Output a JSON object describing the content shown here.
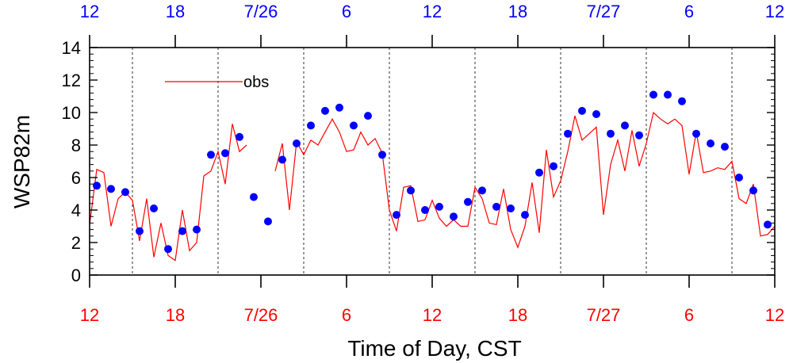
{
  "colors": {
    "obs_line": "#ff0000",
    "dots": "#0000ff",
    "bottom_ticks": "#ff0000",
    "top_ticks": "#0000ff",
    "axis": "#000000",
    "grid": "#000000"
  },
  "chart_data": {
    "type": "line",
    "title": "",
    "xlabel": "Time of Day, CST",
    "ylabel": "WSP82m",
    "xlim": [
      0,
      48
    ],
    "ylim": [
      0,
      14
    ],
    "y_ticks": [
      0,
      2,
      4,
      6,
      8,
      10,
      12,
      14
    ],
    "y_minor_step": 0.4,
    "x_ticks": [
      {
        "x": 0,
        "label": "12"
      },
      {
        "x": 6,
        "label": "18"
      },
      {
        "x": 12,
        "label": "7/26"
      },
      {
        "x": 18,
        "label": "6"
      },
      {
        "x": 24,
        "label": "12"
      },
      {
        "x": 30,
        "label": "18"
      },
      {
        "x": 36,
        "label": "7/27"
      },
      {
        "x": 42,
        "label": "6"
      },
      {
        "x": 48,
        "label": "12"
      }
    ],
    "top_x_ticks": [
      {
        "x": 0,
        "label": "12"
      },
      {
        "x": 6,
        "label": "18"
      },
      {
        "x": 12,
        "label": "7/26"
      },
      {
        "x": 18,
        "label": "6"
      },
      {
        "x": 24,
        "label": "12"
      },
      {
        "x": 30,
        "label": "18"
      },
      {
        "x": 36,
        "label": "7/27"
      },
      {
        "x": 42,
        "label": "6"
      },
      {
        "x": 48,
        "label": "12"
      }
    ],
    "gridlines_x": [
      3,
      9,
      15,
      21,
      27,
      33,
      39,
      45
    ],
    "legend": {
      "label": "obs",
      "position": "top-left"
    },
    "series": [
      {
        "name": "obs",
        "type": "line",
        "segments": [
          [
            [
              0,
              3.1
            ],
            [
              0.5,
              6.5
            ],
            [
              1,
              6.3
            ],
            [
              1.5,
              3.0
            ],
            [
              2,
              4.7
            ],
            [
              2.5,
              5.1
            ],
            [
              3,
              4.6
            ],
            [
              3.5,
              2.1
            ],
            [
              4,
              4.7
            ],
            [
              4.5,
              1.1
            ],
            [
              5,
              3.2
            ],
            [
              5.5,
              1.2
            ],
            [
              6,
              0.9
            ],
            [
              6.5,
              4.0
            ],
            [
              7,
              1.5
            ],
            [
              7.5,
              2.0
            ],
            [
              8,
              6.1
            ],
            [
              8.5,
              6.4
            ],
            [
              9,
              7.6
            ],
            [
              9.5,
              5.6
            ],
            [
              10,
              9.3
            ],
            [
              10.5,
              7.6
            ],
            [
              11,
              8.0
            ]
          ],
          [
            [
              13,
              6.4
            ],
            [
              13.5,
              8.1
            ],
            [
              14,
              4.0
            ],
            [
              14.5,
              8.2
            ],
            [
              15,
              7.4
            ],
            [
              15.5,
              8.3
            ],
            [
              16,
              8.0
            ],
            [
              16.5,
              8.8
            ],
            [
              17,
              9.6
            ],
            [
              17.5,
              8.8
            ],
            [
              18,
              7.6
            ],
            [
              18.5,
              7.7
            ],
            [
              19,
              8.8
            ],
            [
              19.5,
              8.0
            ],
            [
              20,
              8.4
            ],
            [
              20.5,
              7.5
            ],
            [
              21,
              4.0
            ],
            [
              21.5,
              2.7
            ],
            [
              22,
              5.4
            ],
            [
              22.5,
              5.5
            ],
            [
              23,
              3.3
            ],
            [
              23.5,
              3.4
            ],
            [
              24,
              4.6
            ],
            [
              24.5,
              3.5
            ],
            [
              25,
              3.0
            ],
            [
              25.5,
              3.4
            ],
            [
              26,
              3.0
            ],
            [
              26.5,
              3.0
            ],
            [
              27,
              5.4
            ],
            [
              27.5,
              4.7
            ],
            [
              28,
              3.2
            ],
            [
              28.5,
              3.1
            ],
            [
              29,
              5.3
            ],
            [
              29.5,
              2.8
            ],
            [
              30,
              1.7
            ],
            [
              30.5,
              3.0
            ],
            [
              31,
              5.7
            ],
            [
              31.5,
              2.6
            ],
            [
              32,
              7.7
            ],
            [
              32.5,
              4.8
            ],
            [
              33,
              5.8
            ],
            [
              33.5,
              7.6
            ],
            [
              34,
              9.8
            ],
            [
              34.5,
              8.3
            ],
            [
              35,
              8.7
            ],
            [
              35.5,
              9.1
            ],
            [
              36,
              3.7
            ],
            [
              36.5,
              6.8
            ],
            [
              37,
              8.3
            ],
            [
              37.5,
              6.4
            ],
            [
              38,
              8.9
            ],
            [
              38.5,
              6.7
            ],
            [
              39,
              8.1
            ],
            [
              39.5,
              10.0
            ],
            [
              40,
              9.6
            ],
            [
              40.5,
              9.3
            ],
            [
              41,
              9.6
            ],
            [
              41.5,
              9.2
            ],
            [
              42,
              6.2
            ],
            [
              42.5,
              8.8
            ],
            [
              43,
              6.3
            ],
            [
              43.5,
              6.4
            ],
            [
              44,
              6.6
            ],
            [
              44.5,
              6.5
            ],
            [
              45,
              7.0
            ],
            [
              45.5,
              4.7
            ],
            [
              46,
              4.4
            ],
            [
              46.5,
              5.6
            ],
            [
              47,
              2.4
            ],
            [
              47.5,
              2.5
            ],
            [
              48,
              3.0
            ]
          ]
        ]
      },
      {
        "name": "dots",
        "type": "scatter",
        "points": [
          [
            0.5,
            5.5
          ],
          [
            1.5,
            5.3
          ],
          [
            2.5,
            5.1
          ],
          [
            3.5,
            2.7
          ],
          [
            4.5,
            4.1
          ],
          [
            5.5,
            1.6
          ],
          [
            6.5,
            2.7
          ],
          [
            7.5,
            2.8
          ],
          [
            8.5,
            7.4
          ],
          [
            9.5,
            7.5
          ],
          [
            10.5,
            8.5
          ],
          [
            11.5,
            4.8
          ],
          [
            12.5,
            3.3
          ],
          [
            13.5,
            7.1
          ],
          [
            14.5,
            8.1
          ],
          [
            15.5,
            9.2
          ],
          [
            16.5,
            10.1
          ],
          [
            17.5,
            10.3
          ],
          [
            18.5,
            9.2
          ],
          [
            19.5,
            9.8
          ],
          [
            20.5,
            7.4
          ],
          [
            21.5,
            3.7
          ],
          [
            22.5,
            5.2
          ],
          [
            23.5,
            4.0
          ],
          [
            24.5,
            4.2
          ],
          [
            25.5,
            3.6
          ],
          [
            26.5,
            4.5
          ],
          [
            27.5,
            5.2
          ],
          [
            28.5,
            4.2
          ],
          [
            29.5,
            4.1
          ],
          [
            30.5,
            3.7
          ],
          [
            31.5,
            6.3
          ],
          [
            32.5,
            6.7
          ],
          [
            33.5,
            8.7
          ],
          [
            34.5,
            10.1
          ],
          [
            35.5,
            9.9
          ],
          [
            36.5,
            8.7
          ],
          [
            37.5,
            9.2
          ],
          [
            38.5,
            8.6
          ],
          [
            39.5,
            11.1
          ],
          [
            40.5,
            11.1
          ],
          [
            41.5,
            10.7
          ],
          [
            42.5,
            8.7
          ],
          [
            43.5,
            8.1
          ],
          [
            44.5,
            7.9
          ],
          [
            45.5,
            6.0
          ],
          [
            46.5,
            5.2
          ],
          [
            47.5,
            3.1
          ]
        ]
      }
    ]
  }
}
